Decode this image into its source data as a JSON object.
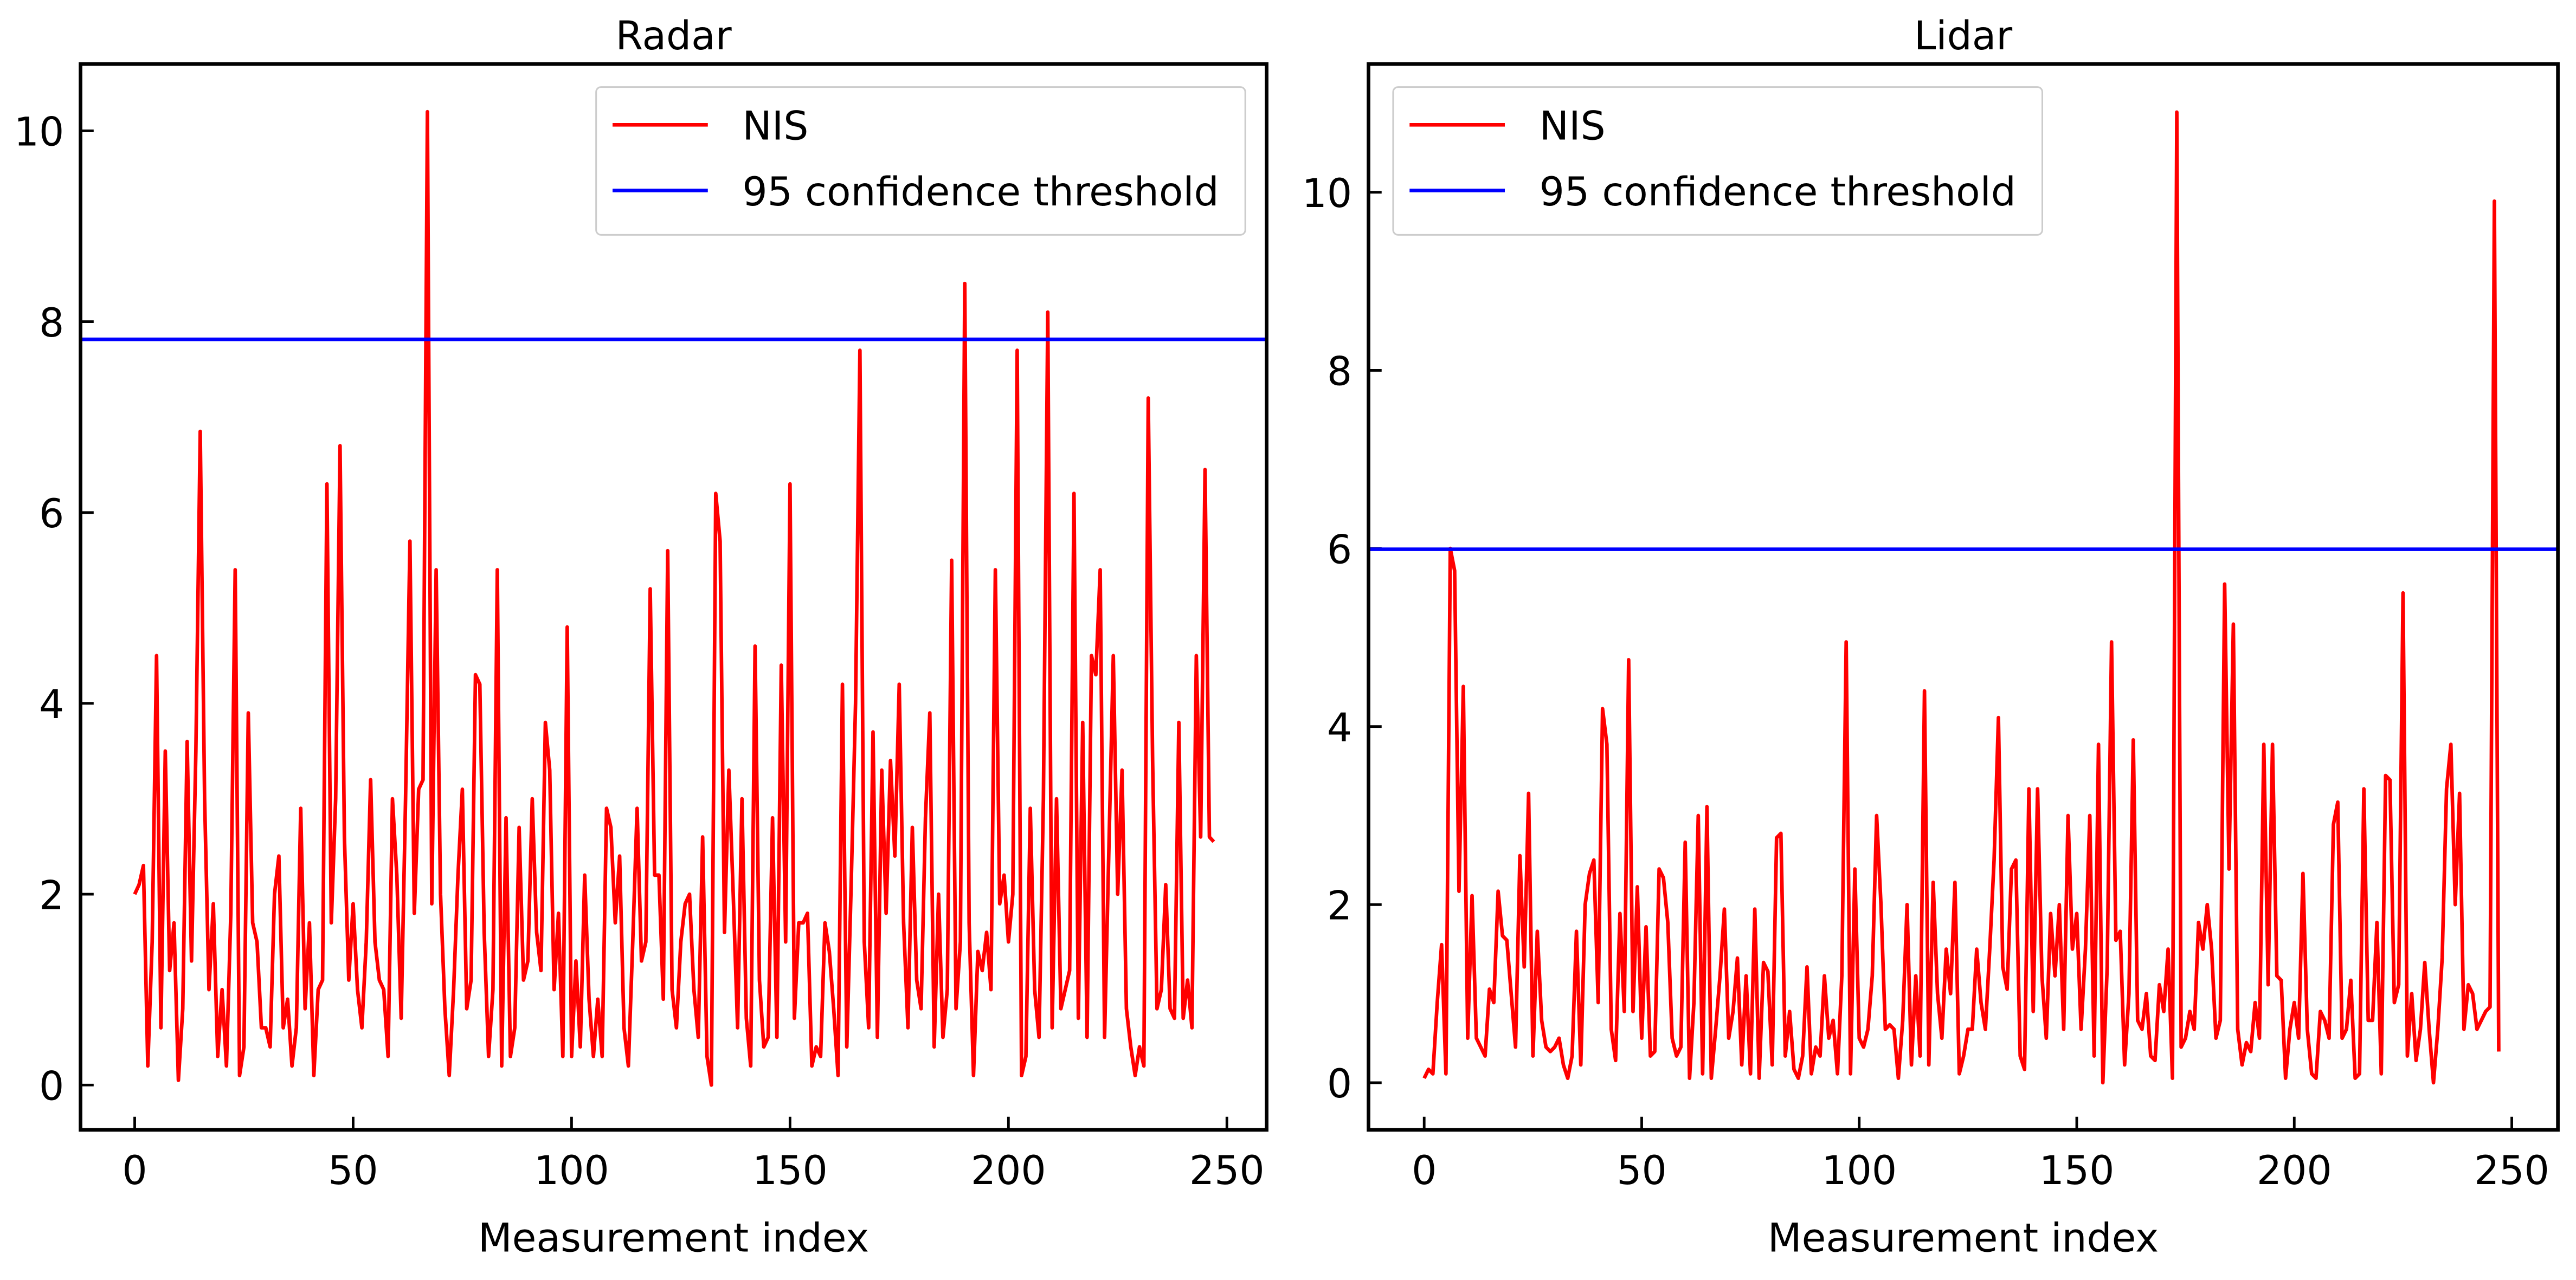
{
  "chart_data": [
    {
      "type": "line",
      "title": "Radar",
      "x_label": "Measurement index",
      "xlim": [
        -12.4,
        259.1
      ],
      "ylim": [
        -0.47,
        10.7
      ],
      "xticks": [
        0,
        50,
        100,
        150,
        200,
        250
      ],
      "yticks": [
        0,
        2,
        4,
        6,
        8,
        10
      ],
      "legend": "upper right",
      "grid": false,
      "series": [
        {
          "name": "NIS",
          "color": "#ff0000",
          "x": [
            0,
            1,
            2,
            3,
            4,
            5,
            6,
            7,
            8,
            9,
            10,
            11,
            12,
            13,
            14,
            15,
            16,
            17,
            18,
            19,
            20,
            21,
            22,
            23,
            24,
            25,
            26,
            27,
            28,
            29,
            30,
            31,
            32,
            33,
            34,
            35,
            36,
            37,
            38,
            39,
            40,
            41,
            42,
            43,
            44,
            45,
            46,
            47,
            48,
            49,
            50,
            51,
            52,
            53,
            54,
            55,
            56,
            57,
            58,
            59,
            60,
            61,
            62,
            63,
            64,
            65,
            66,
            67,
            68,
            69,
            70,
            71,
            72,
            73,
            74,
            75,
            76,
            77,
            78,
            79,
            80,
            81,
            82,
            83,
            84,
            85,
            86,
            87,
            88,
            89,
            90,
            91,
            92,
            93,
            94,
            95,
            96,
            97,
            98,
            99,
            100,
            101,
            102,
            103,
            104,
            105,
            106,
            107,
            108,
            109,
            110,
            111,
            112,
            113,
            114,
            115,
            116,
            117,
            118,
            119,
            120,
            121,
            122,
            123,
            124,
            125,
            126,
            127,
            128,
            129,
            130,
            131,
            132,
            133,
            134,
            135,
            136,
            137,
            138,
            139,
            140,
            141,
            142,
            143,
            144,
            145,
            146,
            147,
            148,
            149,
            150,
            151,
            152,
            153,
            154,
            155,
            156,
            157,
            158,
            159,
            160,
            161,
            162,
            163,
            164,
            165,
            166,
            167,
            168,
            169,
            170,
            171,
            172,
            173,
            174,
            175,
            176,
            177,
            178,
            179,
            180,
            181,
            182,
            183,
            184,
            185,
            186,
            187,
            188,
            189,
            190,
            191,
            192,
            193,
            194,
            195,
            196,
            197,
            198,
            199,
            200,
            201,
            202,
            203,
            204,
            205,
            206,
            207,
            208,
            209,
            210,
            211,
            212,
            213,
            214,
            215,
            216,
            217,
            218,
            219,
            220,
            221,
            222,
            223,
            224,
            225,
            226,
            227,
            228,
            229,
            230,
            231,
            232,
            233,
            234,
            235,
            236,
            237,
            238,
            239,
            240,
            241,
            242,
            243,
            244,
            245,
            246,
            247
          ],
          "values": [
            2.0,
            2.1,
            2.3,
            0.2,
            1.5,
            4.5,
            0.6,
            3.5,
            1.2,
            1.7,
            0.05,
            0.8,
            3.6,
            1.3,
            3.5,
            6.85,
            3.0,
            1.0,
            1.9,
            0.3,
            1.0,
            0.2,
            1.8,
            5.4,
            0.1,
            0.4,
            3.9,
            1.7,
            1.5,
            0.6,
            0.6,
            0.4,
            2.0,
            2.4,
            0.6,
            0.9,
            0.2,
            0.6,
            2.9,
            0.8,
            1.7,
            0.1,
            1.0,
            1.1,
            6.3,
            1.7,
            3.0,
            6.7,
            2.6,
            1.1,
            1.9,
            1.0,
            0.6,
            1.5,
            3.2,
            1.5,
            1.1,
            1.0,
            0.3,
            3.0,
            2.2,
            0.7,
            3.0,
            5.7,
            1.8,
            3.1,
            3.2,
            10.2,
            1.9,
            5.4,
            2.0,
            0.8,
            0.1,
            1.0,
            2.2,
            3.1,
            0.8,
            1.1,
            4.3,
            4.2,
            1.6,
            0.3,
            1.0,
            5.4,
            0.2,
            2.8,
            0.3,
            0.6,
            2.7,
            1.1,
            1.3,
            3.0,
            1.6,
            1.2,
            3.8,
            3.3,
            1.0,
            1.8,
            0.3,
            4.8,
            0.3,
            1.3,
            0.4,
            2.2,
            0.9,
            0.3,
            0.9,
            0.3,
            2.9,
            2.7,
            1.7,
            2.4,
            0.6,
            0.2,
            1.5,
            2.9,
            1.3,
            1.5,
            5.2,
            2.2,
            2.2,
            0.9,
            5.6,
            1.0,
            0.6,
            1.5,
            1.9,
            2.0,
            1.0,
            0.5,
            2.6,
            0.3,
            0.0,
            6.2,
            5.7,
            1.6,
            3.3,
            2.0,
            0.6,
            3.0,
            0.7,
            0.2,
            4.6,
            1.1,
            0.4,
            0.5,
            2.8,
            0.5,
            4.4,
            1.5,
            6.3,
            0.7,
            1.7,
            1.7,
            1.8,
            0.2,
            0.4,
            0.3,
            1.7,
            1.4,
            0.8,
            0.1,
            4.2,
            0.4,
            2.1,
            4.0,
            7.7,
            1.5,
            0.6,
            3.7,
            0.5,
            3.3,
            1.8,
            3.4,
            2.4,
            4.2,
            1.7,
            0.6,
            2.7,
            1.1,
            0.8,
            2.8,
            3.9,
            0.4,
            2.0,
            0.5,
            1.0,
            5.5,
            0.8,
            1.5,
            8.4,
            1.7,
            0.1,
            1.4,
            1.2,
            1.6,
            1.0,
            5.4,
            1.9,
            2.2,
            1.5,
            2.0,
            7.7,
            0.1,
            0.3,
            2.9,
            1.0,
            0.5,
            3.0,
            8.1,
            0.6,
            3.0,
            0.8,
            1.0,
            1.2,
            6.2,
            0.7,
            3.8,
            0.5,
            4.5,
            4.3,
            5.4,
            0.5,
            2.5,
            4.5,
            2.0,
            3.3,
            0.8,
            0.4,
            0.1,
            0.4,
            0.2,
            7.2,
            3.4,
            0.8,
            1.0,
            2.1,
            0.8,
            0.7,
            3.8,
            0.7,
            1.1,
            0.6,
            4.5,
            2.6,
            6.45,
            2.6,
            2.55
          ]
        },
        {
          "name": "95 confidence threshold",
          "color": "#0000ff",
          "value": 7.815
        }
      ]
    },
    {
      "type": "line",
      "title": "Lidar",
      "x_label": "Measurement index",
      "xlim": [
        -12.8,
        260.6
      ],
      "ylim": [
        -0.53,
        11.44
      ],
      "xticks": [
        0,
        50,
        100,
        150,
        200,
        250
      ],
      "yticks": [
        0,
        2,
        4,
        6,
        8,
        10
      ],
      "legend": "upper left",
      "grid": false,
      "series": [
        {
          "name": "NIS",
          "color": "#ff0000",
          "x": [
            0,
            1,
            2,
            3,
            4,
            5,
            6,
            7,
            8,
            9,
            10,
            11,
            12,
            13,
            14,
            15,
            16,
            17,
            18,
            19,
            20,
            21,
            22,
            23,
            24,
            25,
            26,
            27,
            28,
            29,
            30,
            31,
            32,
            33,
            34,
            35,
            36,
            37,
            38,
            39,
            40,
            41,
            42,
            43,
            44,
            45,
            46,
            47,
            48,
            49,
            50,
            51,
            52,
            53,
            54,
            55,
            56,
            57,
            58,
            59,
            60,
            61,
            62,
            63,
            64,
            65,
            66,
            67,
            68,
            69,
            70,
            71,
            72,
            73,
            74,
            75,
            76,
            77,
            78,
            79,
            80,
            81,
            82,
            83,
            84,
            85,
            86,
            87,
            88,
            89,
            90,
            91,
            92,
            93,
            94,
            95,
            96,
            97,
            98,
            99,
            100,
            101,
            102,
            103,
            104,
            105,
            106,
            107,
            108,
            109,
            110,
            111,
            112,
            113,
            114,
            115,
            116,
            117,
            118,
            119,
            120,
            121,
            122,
            123,
            124,
            125,
            126,
            127,
            128,
            129,
            130,
            131,
            132,
            133,
            134,
            135,
            136,
            137,
            138,
            139,
            140,
            141,
            142,
            143,
            144,
            145,
            146,
            147,
            148,
            149,
            150,
            151,
            152,
            153,
            154,
            155,
            156,
            157,
            158,
            159,
            160,
            161,
            162,
            163,
            164,
            165,
            166,
            167,
            168,
            169,
            170,
            171,
            172,
            173,
            174,
            175,
            176,
            177,
            178,
            179,
            180,
            181,
            182,
            183,
            184,
            185,
            186,
            187,
            188,
            189,
            190,
            191,
            192,
            193,
            194,
            195,
            196,
            197,
            198,
            199,
            200,
            201,
            202,
            203,
            204,
            205,
            206,
            207,
            208,
            209,
            210,
            211,
            212,
            213,
            214,
            215,
            216,
            217,
            218,
            219,
            220,
            221,
            222,
            223,
            224,
            225,
            226,
            227,
            228,
            229,
            230,
            231,
            232,
            233,
            234,
            235,
            236,
            237,
            238,
            239,
            240,
            241,
            242,
            243,
            244,
            245,
            246,
            247
          ],
          "values": [
            0.05,
            0.15,
            0.1,
            0.9,
            1.55,
            0.1,
            6.0,
            5.75,
            2.15,
            4.45,
            0.5,
            2.1,
            0.5,
            0.4,
            0.3,
            1.05,
            0.9,
            2.15,
            1.65,
            1.6,
            1.0,
            0.4,
            2.55,
            1.3,
            3.25,
            0.3,
            1.7,
            0.7,
            0.4,
            0.35,
            0.4,
            0.5,
            0.2,
            0.05,
            0.3,
            1.7,
            0.2,
            2.0,
            2.35,
            2.5,
            0.9,
            4.2,
            3.8,
            0.6,
            0.25,
            1.9,
            0.8,
            4.75,
            0.8,
            2.2,
            0.5,
            1.75,
            0.3,
            0.35,
            2.4,
            2.3,
            1.8,
            0.5,
            0.3,
            0.4,
            2.7,
            0.05,
            0.9,
            3.0,
            0.1,
            3.1,
            0.05,
            0.6,
            1.2,
            1.95,
            0.5,
            0.8,
            1.4,
            0.2,
            1.2,
            0.1,
            1.95,
            0.05,
            1.35,
            1.25,
            0.2,
            2.75,
            2.8,
            0.3,
            0.8,
            0.15,
            0.05,
            0.3,
            1.3,
            0.1,
            0.4,
            0.3,
            1.2,
            0.5,
            0.7,
            0.1,
            1.2,
            4.95,
            0.1,
            2.4,
            0.5,
            0.4,
            0.6,
            1.2,
            3.0,
            2.0,
            0.6,
            0.65,
            0.6,
            0.05,
            0.7,
            2.0,
            0.2,
            1.2,
            0.3,
            4.4,
            0.2,
            2.25,
            1.0,
            0.5,
            1.5,
            1.0,
            2.25,
            0.1,
            0.3,
            0.6,
            0.6,
            1.5,
            0.9,
            0.6,
            1.5,
            2.5,
            4.1,
            1.3,
            1.05,
            2.4,
            2.5,
            0.3,
            0.15,
            3.3,
            0.8,
            3.3,
            1.2,
            0.5,
            1.9,
            1.2,
            2.0,
            0.6,
            3.0,
            1.5,
            1.9,
            0.6,
            1.5,
            3.0,
            0.3,
            3.8,
            0.0,
            1.3,
            4.95,
            1.6,
            1.7,
            0.2,
            1.0,
            3.85,
            0.7,
            0.6,
            1.0,
            0.3,
            0.25,
            1.1,
            0.8,
            1.5,
            0.05,
            10.9,
            0.4,
            0.5,
            0.8,
            0.6,
            1.8,
            1.5,
            2.0,
            1.5,
            0.5,
            0.7,
            5.6,
            2.4,
            5.15,
            0.6,
            0.2,
            0.45,
            0.35,
            0.9,
            0.5,
            3.8,
            1.1,
            3.8,
            1.2,
            1.15,
            0.05,
            0.6,
            0.9,
            0.5,
            2.35,
            0.6,
            0.1,
            0.05,
            0.8,
            0.7,
            0.5,
            2.9,
            3.15,
            0.5,
            0.6,
            1.15,
            0.05,
            0.1,
            3.3,
            0.7,
            0.7,
            1.8,
            0.1,
            3.45,
            3.4,
            0.9,
            1.1,
            5.5,
            0.3,
            1.0,
            0.25,
            0.6,
            1.35,
            0.6,
            0.0,
            0.6,
            1.4,
            3.3,
            3.8,
            2.0,
            3.25,
            0.6,
            1.1,
            1.0,
            0.6,
            0.7,
            0.8,
            0.85,
            9.9,
            0.35
          ]
        },
        {
          "name": "95 confidence threshold",
          "color": "#0000ff",
          "value": 5.991
        }
      ]
    }
  ]
}
